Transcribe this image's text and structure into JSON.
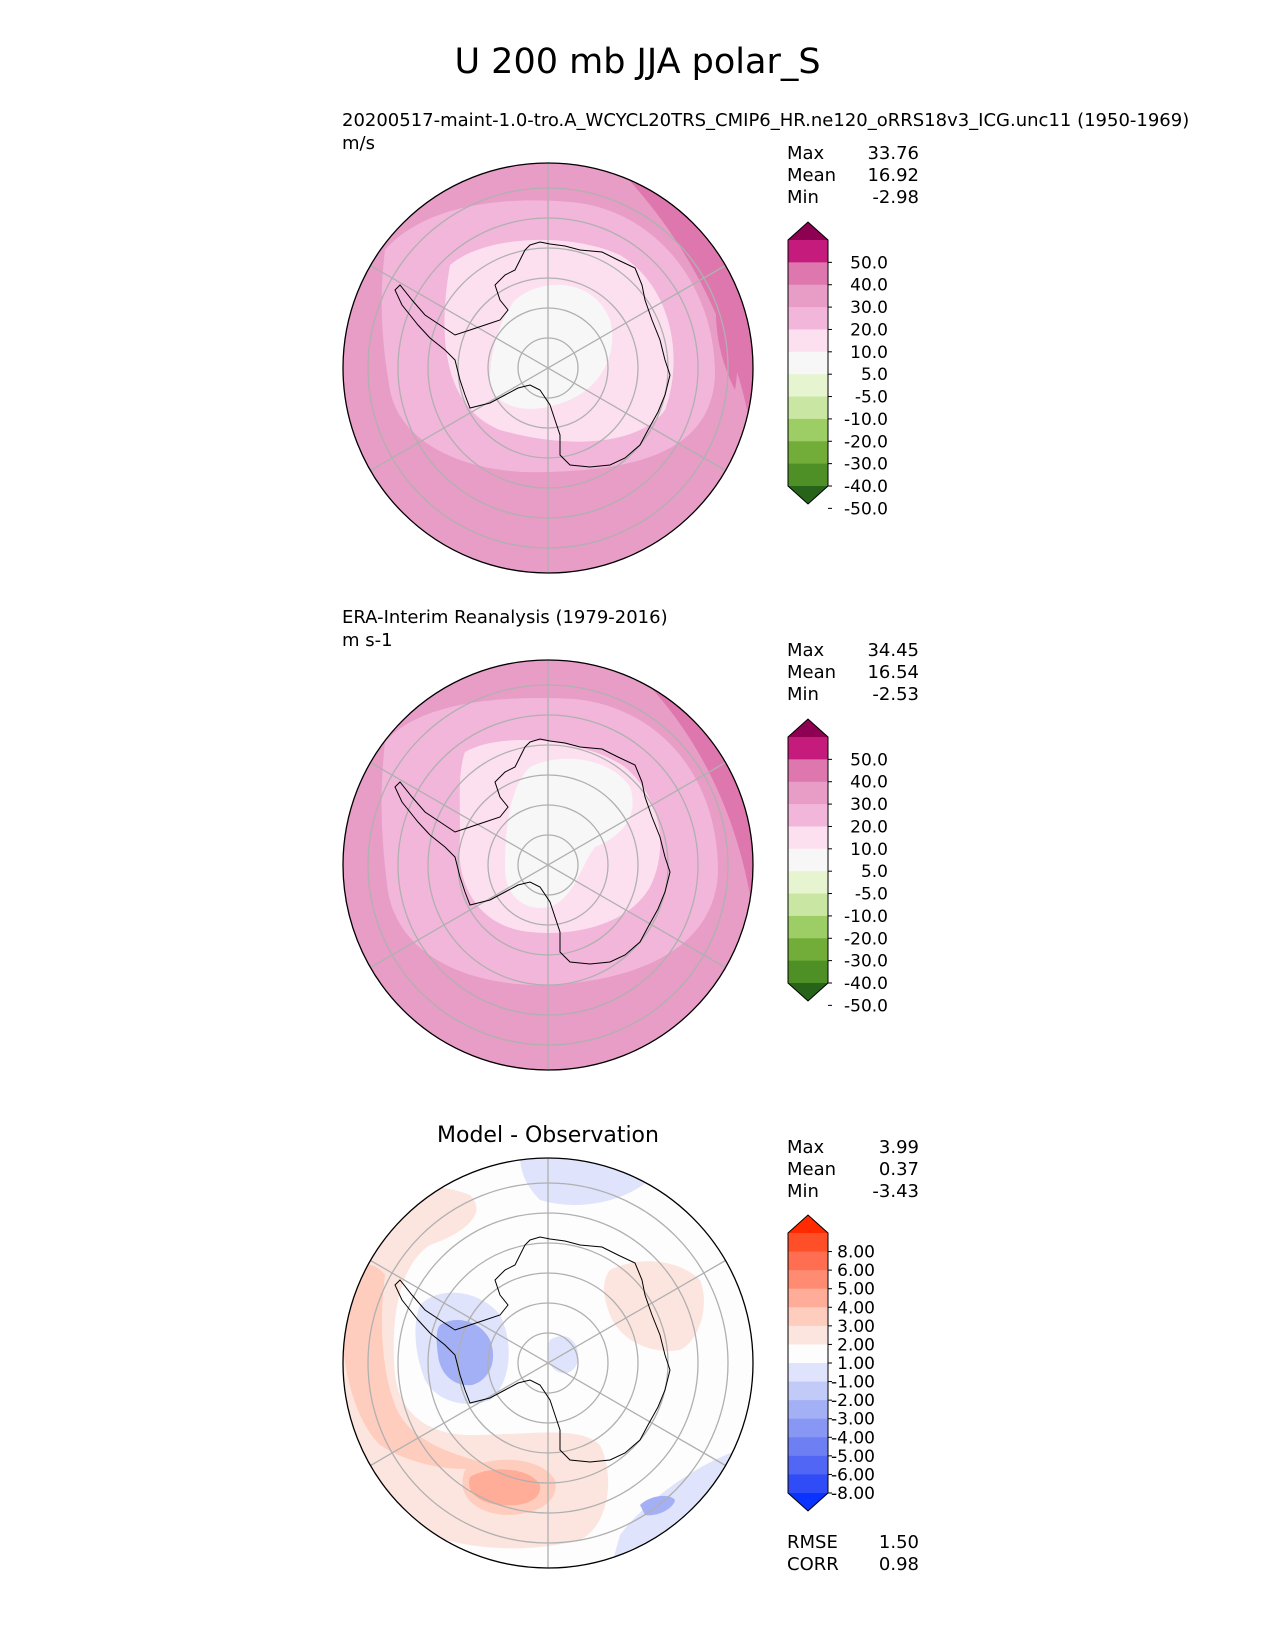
{
  "figure_title": "U 200 mb JJA polar_S",
  "colors": {
    "mean_scale": [
      "#8e0152",
      "#c51b7d",
      "#de77ae",
      "#e89dc6",
      "#f1b6da",
      "#fde0ef",
      "#f7f7f7",
      "#e6f5d0",
      "#c9e7a2",
      "#9dcd65",
      "#72ad3a",
      "#4e9026",
      "#276419"
    ],
    "diff_scale": [
      "#ff2a00",
      "#ff4f28",
      "#ff6e50",
      "#ff8c72",
      "#ffad98",
      "#ffcdbd",
      "#fde5df",
      "#fdfdfd",
      "#dfe3fb",
      "#c2caf8",
      "#a3b0f5",
      "#8797f3",
      "#6d7ff2",
      "#5166f4",
      "#2f4cf6",
      "#0a33ff"
    ],
    "coastline": "#000000",
    "grid": "#b0b0b0"
  },
  "panels": [
    {
      "name": "test",
      "title": "",
      "label_left": "20200517-maint-1.0-tro.A_WCYCL20TRS_CMIP6_HR.ne120_oRRS18v3_ICG.unc11 (1950-1969)",
      "units": "m/s",
      "stats": [
        {
          "label": "Max",
          "value": "33.76"
        },
        {
          "label": "Mean",
          "value": "16.92"
        },
        {
          "label": "Min",
          "value": "-2.98"
        }
      ],
      "colorbar": {
        "levels": [
          "50.0",
          "40.0",
          "30.0",
          "20.0",
          "10.0",
          "5.0",
          "-5.0",
          "-10.0",
          "-20.0",
          "-30.0",
          "-40.0",
          "-50.0"
        ]
      }
    },
    {
      "name": "reference",
      "title": "",
      "label_left": "ERA-Interim Reanalysis (1979-2016)",
      "units": "m s-1",
      "stats": [
        {
          "label": "Max",
          "value": "34.45"
        },
        {
          "label": "Mean",
          "value": "16.54"
        },
        {
          "label": "Min",
          "value": "-2.53"
        }
      ],
      "colorbar": {
        "levels": [
          "50.0",
          "40.0",
          "30.0",
          "20.0",
          "10.0",
          "5.0",
          "-5.0",
          "-10.0",
          "-20.0",
          "-30.0",
          "-40.0",
          "-50.0"
        ]
      }
    },
    {
      "name": "difference",
      "title": "Model - Observation",
      "label_left": "",
      "units": "",
      "stats": [
        {
          "label": "Max",
          "value": "3.99"
        },
        {
          "label": "Mean",
          "value": "0.37"
        },
        {
          "label": "Min",
          "value": "-3.43"
        }
      ],
      "extra_stats": [
        {
          "label": "RMSE",
          "value": "1.50"
        },
        {
          "label": "CORR",
          "value": "0.98"
        }
      ],
      "colorbar": {
        "levels": [
          "8.00",
          "6.00",
          "5.00",
          "4.00",
          "3.00",
          "2.00",
          "1.00",
          "-1.00",
          "-2.00",
          "-3.00",
          "-4.00",
          "-5.00",
          "-6.00",
          "-8.00"
        ]
      }
    }
  ],
  "chart_data": [
    {
      "type": "heatmap",
      "projection": "south polar stereographic",
      "title": "20200517-maint-1.0-tro.A_WCYCL20TRS_CMIP6_HR.ne120_oRRS18v3_ICG.unc11 (1950-1969)",
      "units": "m/s",
      "max": 33.76,
      "mean": 16.92,
      "min": -2.98,
      "contour_levels": [
        -50,
        -40,
        -30,
        -20,
        -10,
        -5,
        5,
        10,
        20,
        30,
        40,
        50
      ]
    },
    {
      "type": "heatmap",
      "projection": "south polar stereographic",
      "title": "ERA-Interim Reanalysis (1979-2016)",
      "units": "m s-1",
      "max": 34.45,
      "mean": 16.54,
      "min": -2.53,
      "contour_levels": [
        -50,
        -40,
        -30,
        -20,
        -10,
        -5,
        5,
        10,
        20,
        30,
        40,
        50
      ]
    },
    {
      "type": "heatmap",
      "projection": "south polar stereographic",
      "title": "Model - Observation",
      "max": 3.99,
      "mean": 0.37,
      "min": -3.43,
      "rmse": 1.5,
      "corr": 0.98,
      "contour_levels": [
        -8,
        -6,
        -5,
        -4,
        -3,
        -2,
        -1,
        1,
        2,
        3,
        4,
        5,
        6,
        8
      ]
    }
  ]
}
